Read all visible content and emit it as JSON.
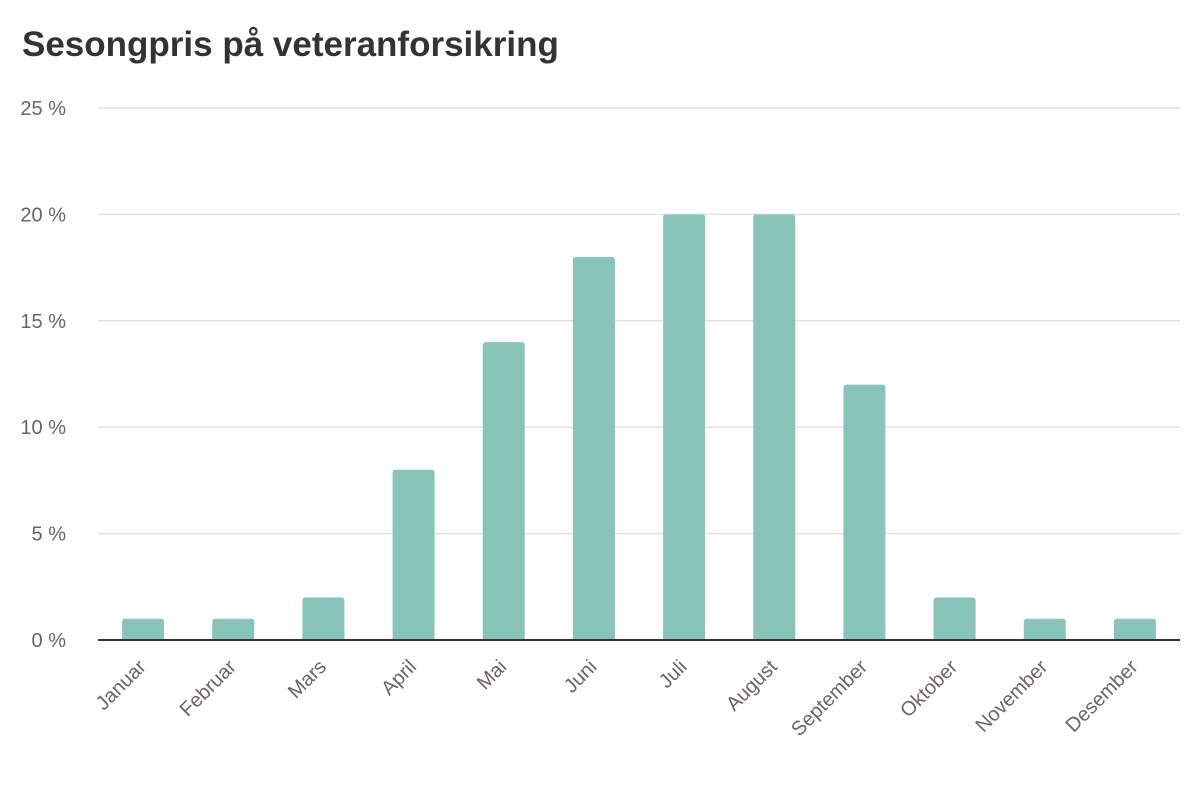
{
  "chart_data": {
    "type": "bar",
    "title": "Sesongpris på veteranforsikring",
    "xlabel": "",
    "ylabel": "",
    "categories": [
      "Januar",
      "Februar",
      "Mars",
      "April",
      "Mai",
      "Juni",
      "Juli",
      "August",
      "September",
      "Oktober",
      "November",
      "Desember"
    ],
    "values": [
      1,
      1,
      2,
      8,
      14,
      18,
      20,
      20,
      12,
      2,
      1,
      1
    ],
    "y_unit": "%",
    "ylim": [
      0,
      25
    ],
    "y_ticks": [
      0,
      5,
      10,
      15,
      20,
      25
    ],
    "y_tick_labels": [
      "0 %",
      "5 %",
      "10 %",
      "15 %",
      "20 %",
      "25 %"
    ],
    "grid": true,
    "legend": "none",
    "colors": {
      "bar": "#88c5b8",
      "grid": "#e2e2e2",
      "axis": "#333333",
      "tick_text": "#6b6563",
      "title_text": "#333333"
    }
  }
}
